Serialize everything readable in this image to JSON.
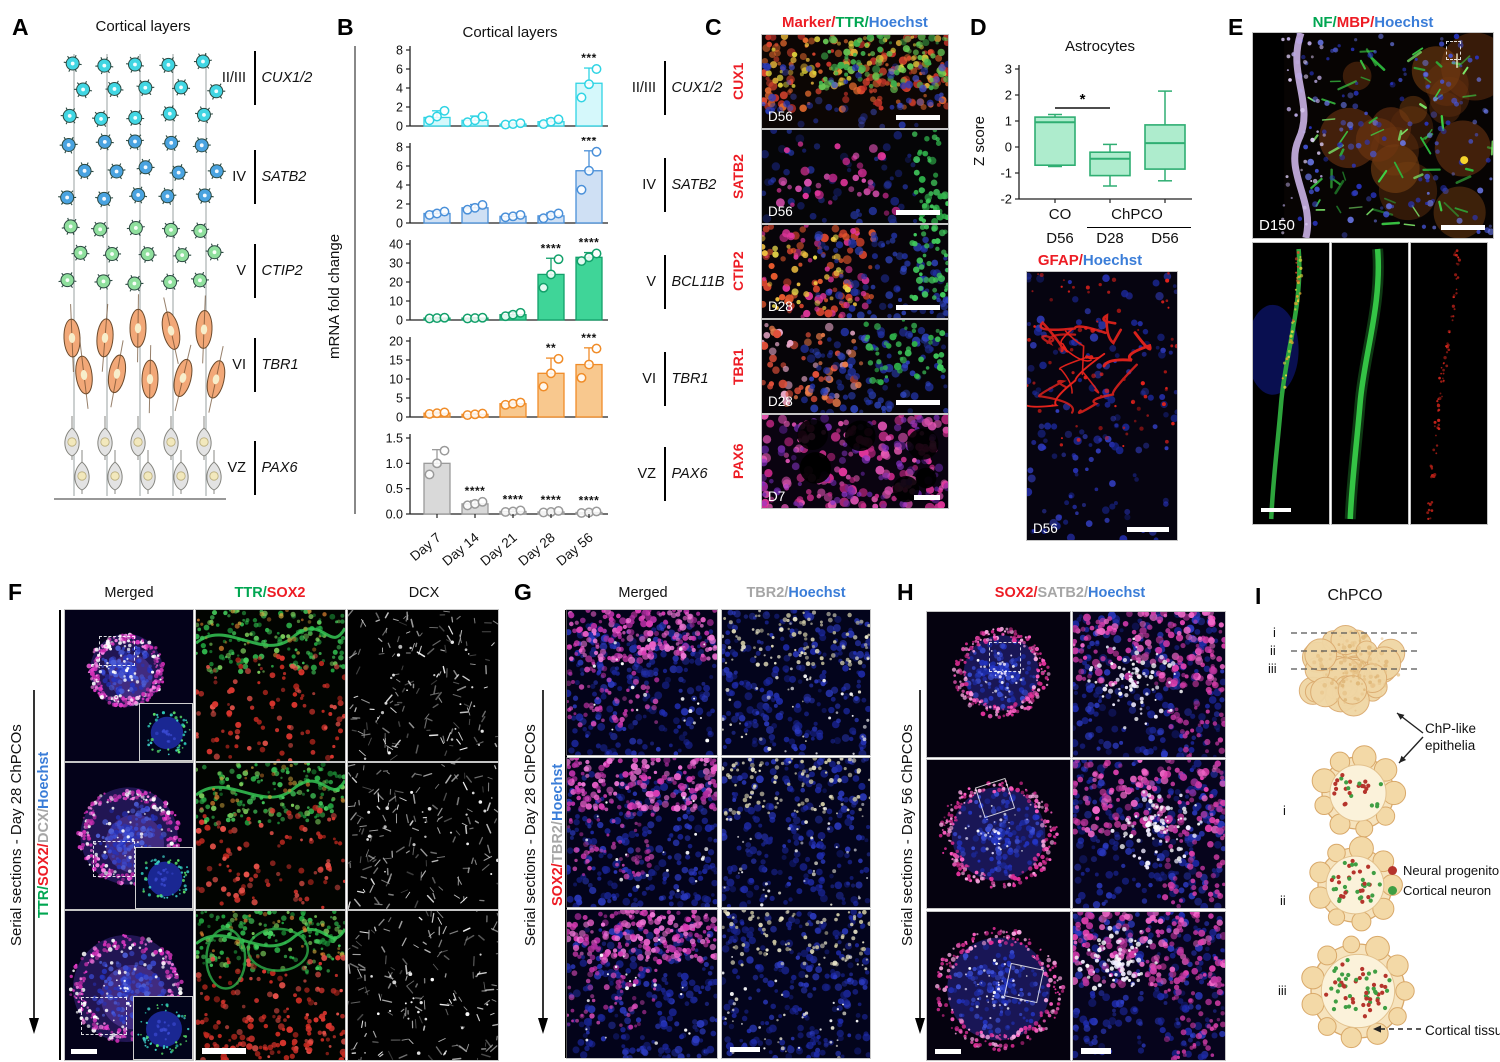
{
  "colors": {
    "red": "#ed1c24",
    "green": "#00a651",
    "blue": "#3a7dd8",
    "gray": "#a6a6a6"
  },
  "panels": {
    "A": {
      "label": "A",
      "title": "Cortical layers",
      "rows": [
        {
          "roman": "II/III",
          "gene": "CUX1/2",
          "color": "#41d6e3"
        },
        {
          "roman": "IV",
          "gene": "SATB2",
          "color": "#4aa3e0"
        },
        {
          "roman": "V",
          "gene": "CTIP2",
          "color": "#8fdf9d"
        },
        {
          "roman": "VI",
          "gene": "TBR1",
          "color": "#f2a878"
        },
        {
          "roman": "VZ",
          "gene": "PAX6",
          "color": "#e3e3e3"
        }
      ]
    },
    "B": {
      "label": "B",
      "title": "Cortical layers",
      "ylabel": "mRNA fold change",
      "rows": [
        {
          "roman": "II/III",
          "gene": "CUX1/2"
        },
        {
          "roman": "IV",
          "gene": "SATB2"
        },
        {
          "roman": "V",
          "gene": "BCL11B"
        },
        {
          "roman": "VI",
          "gene": "TBR1"
        },
        {
          "roman": "VZ",
          "gene": "PAX6"
        }
      ]
    },
    "C": {
      "label": "C",
      "title_segments": [
        [
          "Marker/",
          "#ed1c24"
        ],
        [
          "TTR/",
          "#00a651"
        ],
        [
          "Hoechst",
          "#3a7dd8"
        ]
      ],
      "rows": [
        {
          "marker": "CUX1",
          "day": "D56"
        },
        {
          "marker": "SATB2",
          "day": "D56"
        },
        {
          "marker": "CTIP2",
          "day": "D28"
        },
        {
          "marker": "TBR1",
          "day": "D28"
        },
        {
          "marker": "PAX6",
          "day": "D7"
        }
      ]
    },
    "D": {
      "label": "D",
      "gfap_segments": [
        [
          "GFAP/",
          "#ed1c24"
        ],
        [
          "Hoechst",
          "#3a7dd8"
        ]
      ],
      "image_day": "D56"
    },
    "E": {
      "label": "E",
      "title_segments": [
        [
          "NF/",
          "#00a651"
        ],
        [
          "MBP/",
          "#ed1c24"
        ],
        [
          "Hoechst",
          "#3a7dd8"
        ]
      ],
      "image_day": "D150"
    },
    "F": {
      "label": "F",
      "headers": {
        "col1": "Merged",
        "col3": "DCX"
      },
      "col2_segments": [
        [
          "TTR/",
          "#00a651"
        ],
        [
          "SOX2",
          "#ed1c24"
        ]
      ],
      "side_label": "Serial sections - Day 28 ChPCOs",
      "stain_segments": [
        [
          "TTR/",
          "#00a651"
        ],
        [
          "SOX2/",
          "#ed1c24"
        ],
        [
          "DCX/",
          "#a6a6a6"
        ],
        [
          "Hoechst",
          "#3a7dd8"
        ]
      ]
    },
    "G": {
      "label": "G",
      "headers": {
        "col1": "Merged"
      },
      "col2_segments": [
        [
          "TBR2/",
          "#a6a6a6"
        ],
        [
          "Hoechst",
          "#3a7dd8"
        ]
      ],
      "side_label": "Serial sections - Day 28 ChPCOs",
      "stain_segments": [
        [
          "SOX2/",
          "#ed1c24"
        ],
        [
          "TBR2/",
          "#a6a6a6"
        ],
        [
          "Hoechst",
          "#3a7dd8"
        ]
      ]
    },
    "H": {
      "label": "H",
      "header_segments": [
        [
          "SOX2/",
          "#ed1c24"
        ],
        [
          "SATB2/",
          "#a6a6a6"
        ],
        [
          "Hoechst",
          "#3a7dd8"
        ]
      ],
      "side_label": "Serial sections - Day 56 ChPCOs"
    },
    "I": {
      "label": "I",
      "title": "ChPCO",
      "sections": [
        "i",
        "ii",
        "iii"
      ],
      "callout_line1": "ChP-like",
      "callout_line2": "epithelia",
      "legend": [
        {
          "label": "Neural progenitor",
          "color": "#b5342c"
        },
        {
          "label": "Cortical neuron",
          "color": "#3f9e43"
        }
      ],
      "arrow_label": "Cortical tissue"
    }
  },
  "chart_data": [
    {
      "id": "cux12",
      "type": "bar",
      "layer": "II/III",
      "gene": "CUX1/2",
      "categories": [
        "Day 7",
        "Day 14",
        "Day 21",
        "Day 28",
        "Day 56"
      ],
      "values": [
        0.9,
        0.6,
        0.2,
        0.45,
        4.5
      ],
      "points": [
        [
          0.6,
          1.0,
          1.6
        ],
        [
          0.4,
          0.6,
          1.0
        ],
        [
          0.15,
          0.2,
          0.3
        ],
        [
          0.2,
          0.45,
          0.7
        ],
        [
          3.0,
          4.4,
          6.0
        ]
      ],
      "err_hi": [
        1.6,
        1.05,
        0.32,
        0.75,
        6.1
      ],
      "ylim": [
        0,
        8
      ],
      "yticks": [
        {
          "v": 0,
          "l": "0"
        },
        {
          "v": 2,
          "l": "2"
        },
        {
          "v": 4,
          "l": "4"
        },
        {
          "v": 6,
          "l": "6"
        },
        {
          "v": 8,
          "l": "8"
        }
      ],
      "sig": [
        {
          "cat": 4,
          "stars": "***"
        }
      ],
      "stroke": "#2fd4e4",
      "fill": "#d5f8fb"
    },
    {
      "id": "satb2",
      "type": "bar",
      "layer": "IV",
      "gene": "SATB2",
      "categories": [
        "Day 7",
        "Day 14",
        "Day 21",
        "Day 28",
        "Day 56"
      ],
      "values": [
        1.0,
        1.6,
        0.7,
        0.75,
        5.5
      ],
      "points": [
        [
          0.85,
          1.0,
          1.2
        ],
        [
          1.4,
          1.6,
          1.9
        ],
        [
          0.6,
          0.7,
          0.85
        ],
        [
          0.5,
          0.8,
          1.0
        ],
        [
          3.5,
          5.5,
          7.5
        ]
      ],
      "err_hi": [
        1.25,
        1.95,
        0.9,
        1.05,
        7.6
      ],
      "ylim": [
        0,
        8
      ],
      "yticks": [
        {
          "v": 0,
          "l": "0"
        },
        {
          "v": 2,
          "l": "2"
        },
        {
          "v": 4,
          "l": "4"
        },
        {
          "v": 6,
          "l": "6"
        },
        {
          "v": 8,
          "l": "8"
        }
      ],
      "sig": [
        {
          "cat": 4,
          "stars": "***"
        }
      ],
      "stroke": "#4a90d9",
      "fill": "#cfe0f4"
    },
    {
      "id": "bcl11b",
      "type": "bar",
      "layer": "V",
      "gene": "BCL11B",
      "categories": [
        "Day 7",
        "Day 14",
        "Day 21",
        "Day 28",
        "Day 56"
      ],
      "values": [
        1.0,
        1.0,
        2.8,
        24,
        33
      ],
      "points": [
        [
          0.8,
          1.0,
          1.2
        ],
        [
          0.8,
          1.0,
          1.2
        ],
        [
          2.0,
          2.8,
          3.8
        ],
        [
          17,
          24,
          32
        ],
        [
          31,
          33,
          35
        ]
      ],
      "err_hi": [
        1.4,
        1.3,
        4.0,
        32.5,
        35.5
      ],
      "ylim": [
        0,
        40
      ],
      "yticks": [
        {
          "v": 0,
          "l": "0"
        },
        {
          "v": 10,
          "l": "10"
        },
        {
          "v": 20,
          "l": "20"
        },
        {
          "v": 30,
          "l": "30"
        },
        {
          "v": 40,
          "l": "40"
        }
      ],
      "sig": [
        {
          "cat": 3,
          "stars": "****"
        },
        {
          "cat": 4,
          "stars": "****"
        }
      ],
      "stroke": "#12a06a",
      "fill": "#3fd598"
    },
    {
      "id": "tbr1",
      "type": "bar",
      "layer": "VI",
      "gene": "TBR1",
      "categories": [
        "Day 7",
        "Day 14",
        "Day 21",
        "Day 28",
        "Day 56"
      ],
      "values": [
        1.0,
        0.7,
        3.5,
        11.5,
        13.8
      ],
      "points": [
        [
          0.8,
          1.0,
          1.2
        ],
        [
          0.5,
          0.7,
          0.9
        ],
        [
          3.2,
          3.5,
          3.8
        ],
        [
          8.0,
          11.5,
          15.3
        ],
        [
          10.3,
          13.8,
          18.0
        ]
      ],
      "err_hi": [
        1.3,
        1.0,
        3.9,
        15.5,
        18.2
      ],
      "ylim": [
        0,
        20
      ],
      "yticks": [
        {
          "v": 0,
          "l": "0"
        },
        {
          "v": 5,
          "l": "5"
        },
        {
          "v": 10,
          "l": "10"
        },
        {
          "v": 15,
          "l": "15"
        },
        {
          "v": 20,
          "l": "20"
        }
      ],
      "sig": [
        {
          "cat": 3,
          "stars": "**"
        },
        {
          "cat": 4,
          "stars": "***"
        }
      ],
      "stroke": "#f08c28",
      "fill": "#f8c88e"
    },
    {
      "id": "pax6",
      "type": "bar",
      "layer": "VZ",
      "gene": "PAX6",
      "categories": [
        "Day 7",
        "Day 14",
        "Day 21",
        "Day 28",
        "Day 56"
      ],
      "values": [
        1.0,
        0.2,
        0.05,
        0.04,
        0.03
      ],
      "points": [
        [
          0.78,
          1.0,
          1.25
        ],
        [
          0.17,
          0.2,
          0.24
        ],
        [
          0.04,
          0.05,
          0.07
        ],
        [
          0.03,
          0.04,
          0.06
        ],
        [
          0.02,
          0.03,
          0.05
        ]
      ],
      "err_hi": [
        1.27,
        0.26,
        0.09,
        0.08,
        0.07
      ],
      "ylim": [
        0,
        1.5
      ],
      "yticks": [
        {
          "v": 0,
          "l": "0.0"
        },
        {
          "v": 0.5,
          "l": "0.5"
        },
        {
          "v": 1.0,
          "l": "1.0"
        },
        {
          "v": 1.5,
          "l": "1.5"
        }
      ],
      "sig": [
        {
          "cat": 1,
          "stars": "****"
        },
        {
          "cat": 2,
          "stars": "****"
        },
        {
          "cat": 3,
          "stars": "****"
        },
        {
          "cat": 4,
          "stars": "****"
        }
      ],
      "stroke": "#9a9a9a",
      "fill": "#d9d9d9"
    },
    {
      "id": "astro",
      "type": "box",
      "title": "Astrocytes",
      "ylabel": "Z score",
      "groups": [
        "CO D56",
        "ChPCO D28",
        "ChPCO D56"
      ],
      "x_top": [
        "CO",
        "ChPCO"
      ],
      "x_bottom": [
        "D56",
        "D28",
        "D56"
      ],
      "boxes": [
        {
          "lo": -0.75,
          "q1": -0.7,
          "med": 0.95,
          "q3": 1.15,
          "hi": 1.25
        },
        {
          "lo": -1.5,
          "q1": -1.1,
          "med": -0.45,
          "q3": -0.2,
          "hi": 0.1
        },
        {
          "lo": -1.3,
          "q1": -0.85,
          "med": 0.15,
          "q3": 0.85,
          "hi": 2.15
        }
      ],
      "ylim": [
        -2,
        3
      ],
      "yticks": [
        -2,
        -1,
        0,
        1,
        2,
        3
      ],
      "sig": {
        "a": 0,
        "b": 1,
        "stars": "*",
        "y": 1.5
      },
      "stroke": "#2fae72",
      "fill": "#aeeccd"
    }
  ]
}
